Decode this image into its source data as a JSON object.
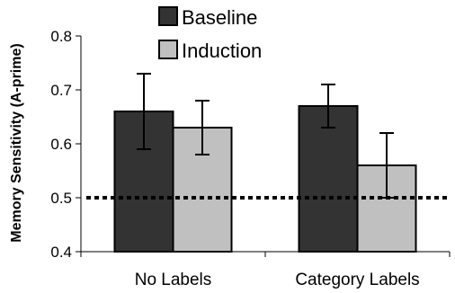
{
  "chart_data": {
    "type": "bar",
    "ylabel": "Memory Sensitivity (A-prime)",
    "xlabel": "",
    "categories": [
      "No Labels",
      "Category Labels"
    ],
    "ylim": [
      0.4,
      0.8
    ],
    "yticks": [
      "0.4",
      "0.5",
      "0.6",
      "0.7",
      "0.8"
    ],
    "reference_line": 0.5,
    "legend_position": "top",
    "grid": false,
    "series": [
      {
        "name": "Baseline",
        "color": "#333333",
        "values": [
          0.66,
          0.67
        ],
        "errors": [
          0.07,
          0.04
        ]
      },
      {
        "name": "Induction",
        "color": "#c0c0c0",
        "values": [
          0.63,
          0.56
        ],
        "errors": [
          0.05,
          0.06
        ]
      }
    ]
  }
}
